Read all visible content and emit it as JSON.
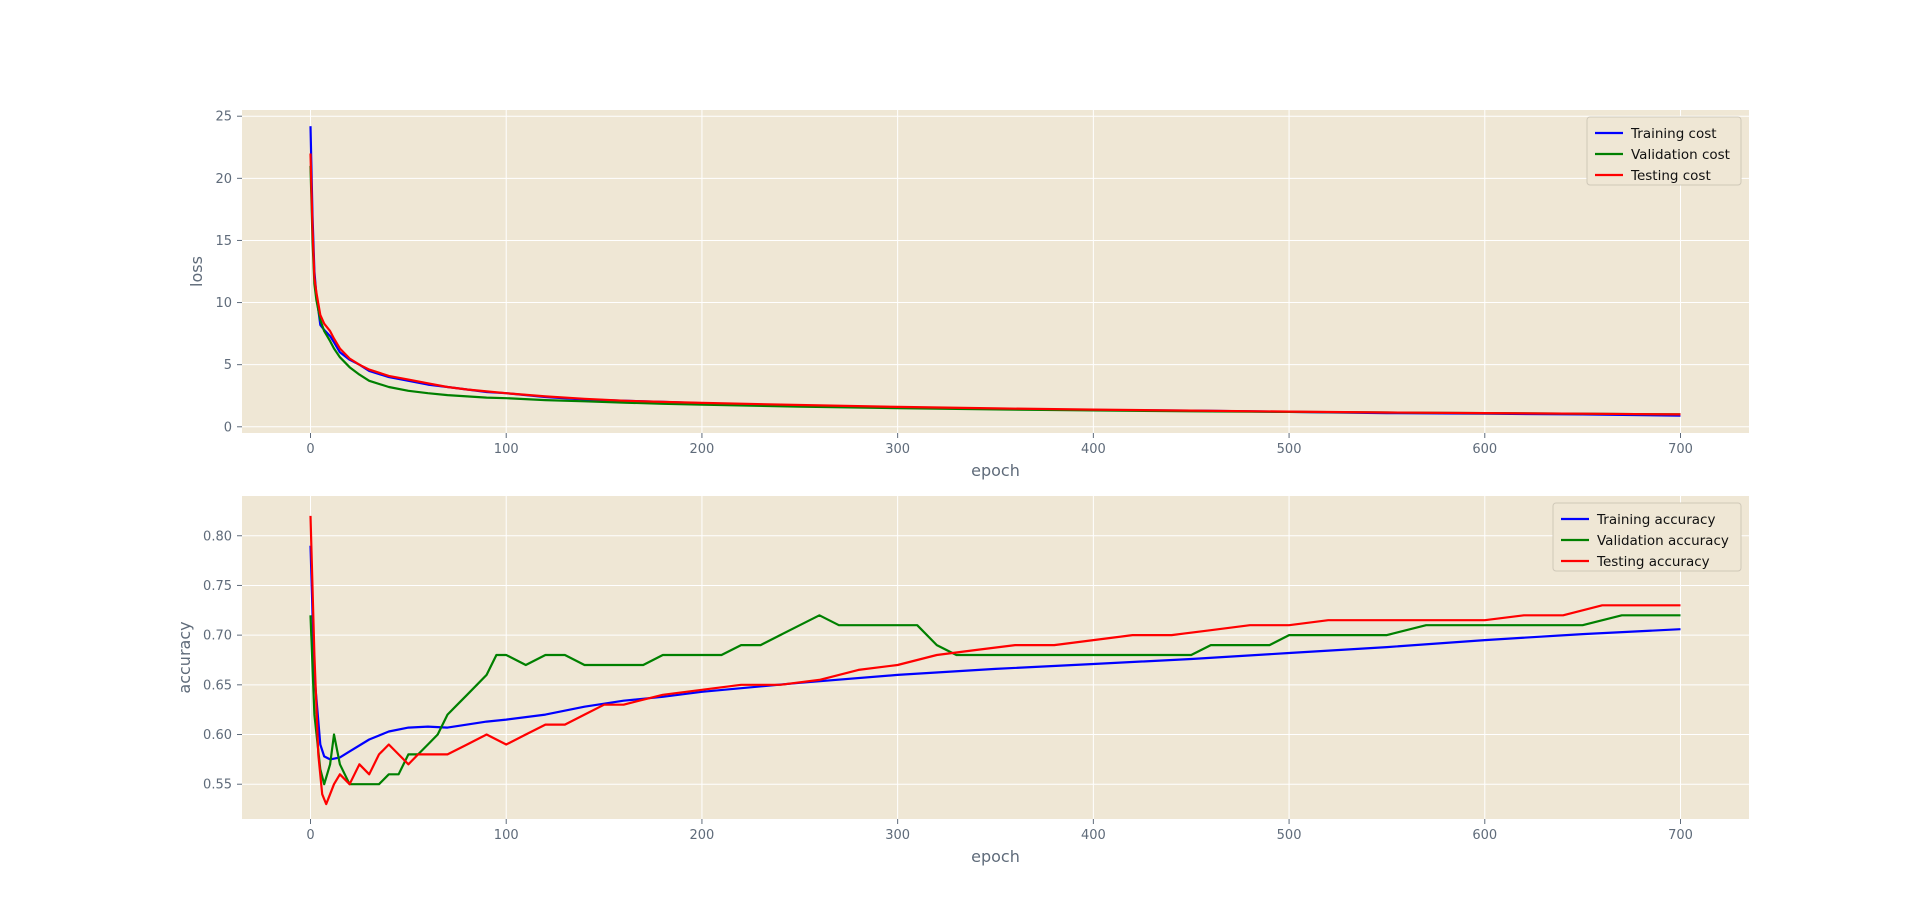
{
  "figure": {
    "background": "#ffffff",
    "axes_background": "#efe7d5",
    "grid_color": "#ffffff",
    "tick_color": "#5f6b7a"
  },
  "chart_data": [
    {
      "type": "line",
      "title": "",
      "xlabel": "epoch",
      "ylabel": "loss",
      "xlim": [
        -35,
        735
      ],
      "ylim": [
        -0.5,
        25.5
      ],
      "xticks": [
        0,
        100,
        200,
        300,
        400,
        500,
        600,
        700
      ],
      "yticks": [
        0,
        5,
        10,
        15,
        20,
        25
      ],
      "xtick_labels": [
        "0",
        "100",
        "200",
        "300",
        "400",
        "500",
        "600",
        "700"
      ],
      "ytick_labels": [
        "0",
        "5",
        "10",
        "15",
        "20",
        "25"
      ],
      "grid": true,
      "legend": "upper right",
      "series": [
        {
          "name": "Training cost",
          "color": "#0000ff",
          "x": [
            0,
            1,
            2,
            3,
            5,
            7,
            10,
            12,
            15,
            20,
            25,
            30,
            40,
            50,
            60,
            70,
            80,
            90,
            100,
            120,
            140,
            160,
            180,
            200,
            250,
            300,
            350,
            400,
            450,
            500,
            550,
            600,
            650,
            700
          ],
          "y": [
            24.2,
            17.0,
            12.5,
            10.6,
            8.2,
            7.8,
            7.3,
            6.8,
            6.0,
            5.4,
            5.0,
            4.5,
            4.0,
            3.7,
            3.4,
            3.2,
            3.0,
            2.8,
            2.7,
            2.4,
            2.2,
            2.1,
            2.0,
            1.9,
            1.7,
            1.55,
            1.45,
            1.35,
            1.3,
            1.2,
            1.1,
            1.05,
            1.0,
            0.9
          ]
        },
        {
          "name": "Validation cost",
          "color": "#008000",
          "x": [
            0,
            1,
            2,
            3,
            5,
            7,
            10,
            12,
            15,
            20,
            25,
            30,
            40,
            50,
            60,
            70,
            80,
            90,
            100,
            120,
            140,
            160,
            180,
            200,
            250,
            300,
            350,
            400,
            450,
            500,
            550,
            600,
            650,
            700
          ],
          "y": [
            21.0,
            15.0,
            11.5,
            10.2,
            8.6,
            7.7,
            6.9,
            6.3,
            5.6,
            4.8,
            4.2,
            3.7,
            3.2,
            2.9,
            2.7,
            2.55,
            2.45,
            2.35,
            2.3,
            2.15,
            2.05,
            1.95,
            1.85,
            1.78,
            1.62,
            1.5,
            1.4,
            1.32,
            1.25,
            1.2,
            1.15,
            1.1,
            1.05,
            1.0
          ]
        },
        {
          "name": "Testing cost",
          "color": "#ff0000",
          "x": [
            0,
            1,
            2,
            3,
            5,
            7,
            10,
            12,
            15,
            20,
            25,
            30,
            40,
            50,
            60,
            70,
            80,
            90,
            100,
            120,
            140,
            160,
            180,
            200,
            250,
            300,
            350,
            400,
            450,
            500,
            550,
            600,
            650,
            700
          ],
          "y": [
            22.0,
            16.0,
            12.0,
            10.8,
            9.0,
            8.3,
            7.7,
            7.1,
            6.3,
            5.5,
            5.0,
            4.6,
            4.1,
            3.8,
            3.5,
            3.2,
            3.0,
            2.85,
            2.7,
            2.45,
            2.25,
            2.1,
            2.0,
            1.92,
            1.75,
            1.6,
            1.48,
            1.38,
            1.3,
            1.22,
            1.15,
            1.1,
            1.05,
            1.0
          ]
        }
      ]
    },
    {
      "type": "line",
      "title": "",
      "xlabel": "epoch",
      "ylabel": "accuracy",
      "xlim": [
        -35,
        735
      ],
      "ylim": [
        0.515,
        0.84
      ],
      "xticks": [
        0,
        100,
        200,
        300,
        400,
        500,
        600,
        700
      ],
      "yticks": [
        0.55,
        0.6,
        0.65,
        0.7,
        0.75,
        0.8
      ],
      "xtick_labels": [
        "0",
        "100",
        "200",
        "300",
        "400",
        "500",
        "600",
        "700"
      ],
      "ytick_labels": [
        "0.55",
        "0.60",
        "0.65",
        "0.70",
        "0.75",
        "0.80"
      ],
      "grid": true,
      "legend": "upper right",
      "series": [
        {
          "name": "Training accuracy",
          "color": "#0000ff",
          "x": [
            0,
            2,
            5,
            7,
            10,
            15,
            20,
            30,
            40,
            50,
            60,
            70,
            80,
            90,
            100,
            120,
            140,
            160,
            180,
            200,
            250,
            300,
            350,
            400,
            450,
            500,
            550,
            600,
            650,
            700
          ],
          "y": [
            0.79,
            0.66,
            0.59,
            0.578,
            0.575,
            0.577,
            0.583,
            0.595,
            0.603,
            0.607,
            0.608,
            0.607,
            0.61,
            0.613,
            0.615,
            0.62,
            0.628,
            0.634,
            0.638,
            0.643,
            0.652,
            0.66,
            0.666,
            0.671,
            0.676,
            0.682,
            0.688,
            0.695,
            0.701,
            0.706
          ]
        },
        {
          "name": "Validation accuracy",
          "color": "#008000",
          "x": [
            0,
            2,
            5,
            7,
            10,
            12,
            15,
            20,
            25,
            30,
            35,
            40,
            45,
            50,
            55,
            60,
            65,
            70,
            75,
            80,
            85,
            90,
            95,
            100,
            110,
            120,
            130,
            140,
            150,
            170,
            180,
            190,
            200,
            210,
            220,
            230,
            240,
            250,
            260,
            270,
            280,
            300,
            310,
            320,
            330,
            400,
            450,
            460,
            490,
            500,
            550,
            570,
            600,
            650,
            670,
            680,
            690,
            700
          ],
          "y": [
            0.72,
            0.62,
            0.565,
            0.55,
            0.57,
            0.6,
            0.57,
            0.55,
            0.55,
            0.55,
            0.55,
            0.56,
            0.56,
            0.58,
            0.58,
            0.59,
            0.6,
            0.62,
            0.63,
            0.64,
            0.65,
            0.66,
            0.68,
            0.68,
            0.67,
            0.68,
            0.68,
            0.67,
            0.67,
            0.67,
            0.68,
            0.68,
            0.68,
            0.68,
            0.69,
            0.69,
            0.7,
            0.71,
            0.72,
            0.71,
            0.71,
            0.71,
            0.71,
            0.69,
            0.68,
            0.68,
            0.68,
            0.69,
            0.69,
            0.7,
            0.7,
            0.71,
            0.71,
            0.71,
            0.72,
            0.72,
            0.72,
            0.72
          ]
        },
        {
          "name": "Testing accuracy",
          "color": "#ff0000",
          "x": [
            0,
            2,
            4,
            6,
            8,
            10,
            12,
            15,
            20,
            25,
            30,
            35,
            40,
            45,
            50,
            55,
            60,
            70,
            80,
            90,
            100,
            110,
            120,
            130,
            140,
            150,
            160,
            170,
            180,
            200,
            220,
            240,
            260,
            280,
            300,
            320,
            340,
            360,
            380,
            400,
            420,
            440,
            460,
            480,
            500,
            520,
            540,
            560,
            580,
            600,
            620,
            640,
            660,
            680,
            700
          ],
          "y": [
            0.82,
            0.68,
            0.58,
            0.54,
            0.53,
            0.54,
            0.55,
            0.56,
            0.55,
            0.57,
            0.56,
            0.58,
            0.59,
            0.58,
            0.57,
            0.58,
            0.58,
            0.58,
            0.59,
            0.6,
            0.59,
            0.6,
            0.61,
            0.61,
            0.62,
            0.63,
            0.63,
            0.635,
            0.64,
            0.645,
            0.65,
            0.65,
            0.655,
            0.665,
            0.67,
            0.68,
            0.685,
            0.69,
            0.69,
            0.695,
            0.7,
            0.7,
            0.705,
            0.71,
            0.71,
            0.715,
            0.715,
            0.715,
            0.715,
            0.715,
            0.72,
            0.72,
            0.73,
            0.73,
            0.73
          ]
        }
      ]
    }
  ]
}
